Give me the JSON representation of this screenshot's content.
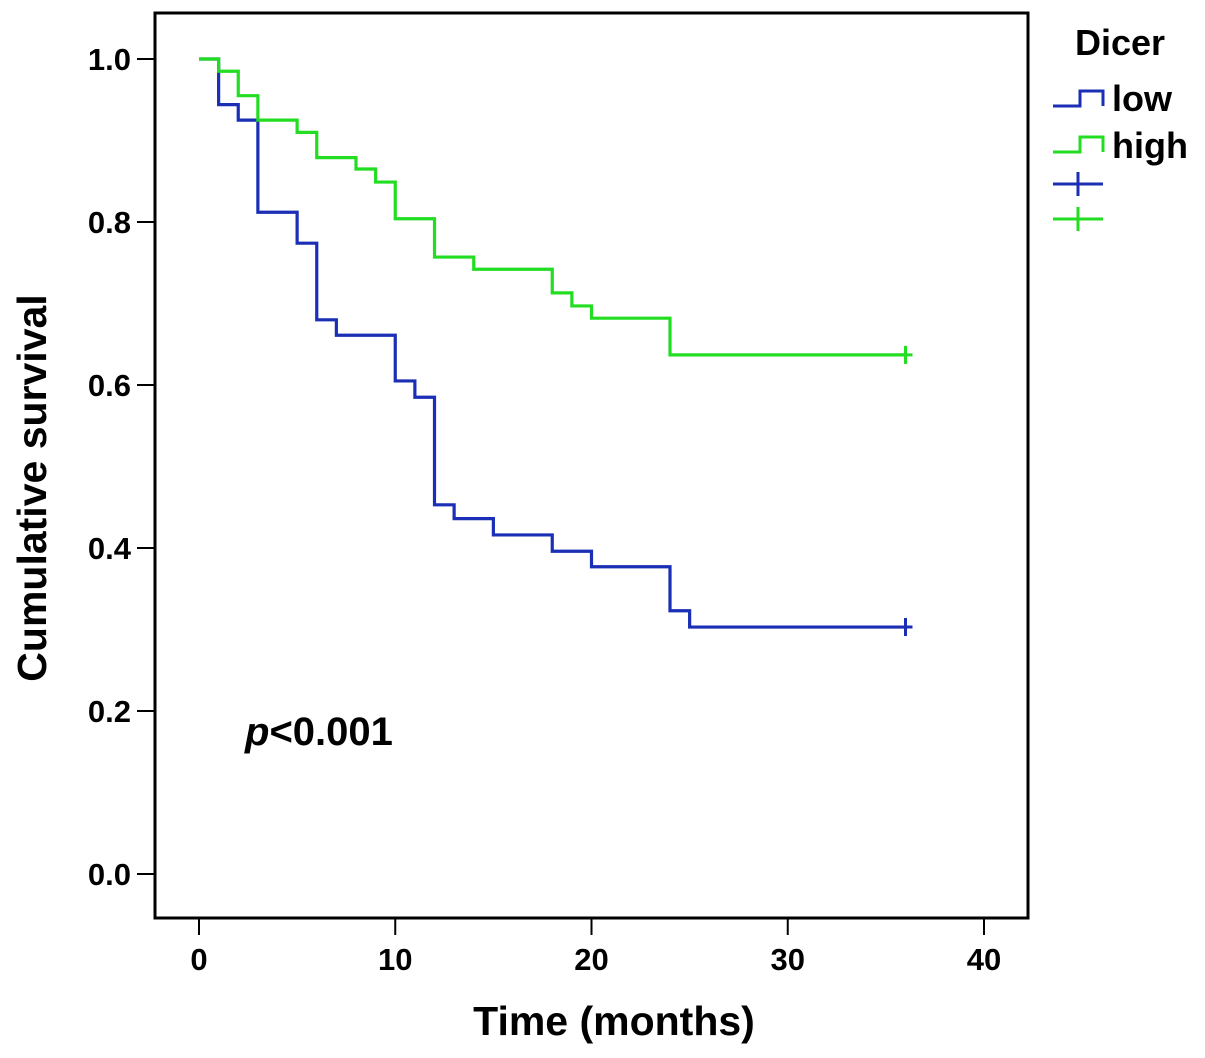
{
  "chart_data": {
    "type": "line",
    "subtype": "kaplan-meier step",
    "title": "",
    "xlabel": "Time (months)",
    "ylabel": "Cumulative survival",
    "xlim": [
      0,
      40
    ],
    "ylim": [
      0,
      1.0
    ],
    "xticks": [
      "0",
      "10",
      "20",
      "30",
      "40"
    ],
    "yticks": [
      "0.0",
      "0.2",
      "0.4",
      "0.6",
      "0.8",
      "1.0"
    ],
    "grid": false,
    "legend": {
      "title": "Dicer",
      "placement": "top-right",
      "entries": [
        "low",
        "high"
      ]
    },
    "annotation": {
      "italic": "p",
      "text": "<0.001"
    },
    "series": [
      {
        "name": "low",
        "color": "#1a2fb5",
        "x": [
          0,
          1,
          2,
          3,
          5,
          6,
          7,
          10,
          11,
          12,
          13,
          15,
          18,
          20,
          24,
          25,
          36
        ],
        "y": [
          1.0,
          0.944,
          0.925,
          0.812,
          0.774,
          0.68,
          0.661,
          0.605,
          0.585,
          0.453,
          0.436,
          0.416,
          0.396,
          0.377,
          0.323,
          0.303,
          0.303
        ],
        "censored": [
          36
        ]
      },
      {
        "name": "high",
        "color": "#22dd22",
        "x": [
          0,
          1,
          2,
          3,
          5,
          6,
          8,
          9,
          10,
          12,
          14,
          18,
          19,
          20,
          24,
          36
        ],
        "y": [
          1.0,
          0.985,
          0.955,
          0.925,
          0.91,
          0.879,
          0.865,
          0.849,
          0.804,
          0.757,
          0.742,
          0.713,
          0.697,
          0.682,
          0.637,
          0.637
        ],
        "censored": [
          36
        ]
      }
    ]
  }
}
